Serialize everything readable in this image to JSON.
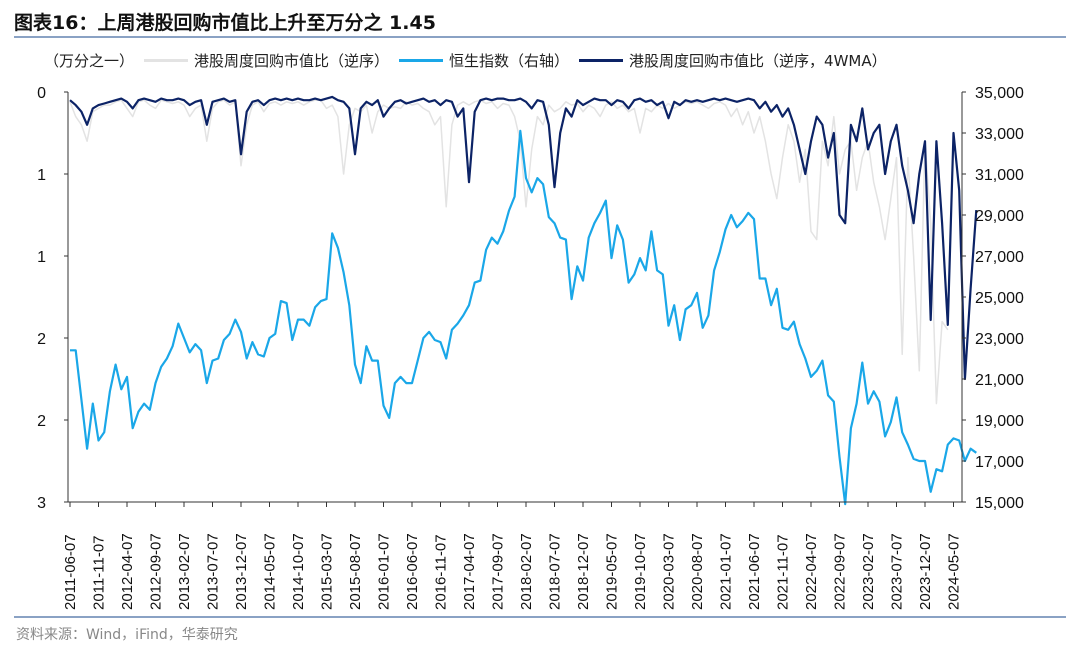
{
  "title": "图表16：上周港股回购市值比上升至万分之 1.45",
  "source": "资料来源：Wind，iFind，华泰研究",
  "chart_data": {
    "type": "line",
    "title": "图表16：上周港股回购市值比上升至万分之 1.45",
    "left_axis_unit": "（万分之一）",
    "left_axis": {
      "range": [
        0,
        2.5
      ],
      "reversed": true,
      "tick_labels": [
        "0",
        "1",
        "1",
        "2",
        "2",
        "3"
      ]
    },
    "right_axis": {
      "range": [
        15000,
        35000
      ],
      "tick_labels": [
        "35,000",
        "33,000",
        "31,000",
        "29,000",
        "27,000",
        "25,000",
        "23,000",
        "21,000",
        "19,000",
        "17,000",
        "15,000"
      ]
    },
    "x_tick_labels": [
      "2011-06-07",
      "2011-11-07",
      "2012-04-07",
      "2012-09-07",
      "2013-02-07",
      "2013-07-07",
      "2013-12-07",
      "2014-05-07",
      "2014-10-07",
      "2015-03-07",
      "2015-08-07",
      "2016-01-07",
      "2016-06-07",
      "2016-11-07",
      "2017-04-07",
      "2017-09-07",
      "2018-02-07",
      "2018-07-07",
      "2018-12-07",
      "2019-05-07",
      "2019-10-07",
      "2020-03-07",
      "2020-08-07",
      "2021-01-07",
      "2021-06-07",
      "2021-11-07",
      "2022-04-07",
      "2022-09-07",
      "2023-02-07",
      "2023-07-07",
      "2023-12-07",
      "2024-05-07"
    ],
    "x_start": "2011-06",
    "x_end": "2024-09",
    "x_step": "month",
    "grid": false,
    "legend_position": "top",
    "series": [
      {
        "name": "港股周度回购市值比（逆序）",
        "axis": "left",
        "color": "#e3e3e3",
        "values": [
          0.06,
          0.15,
          0.2,
          0.3,
          0.12,
          0.1,
          0.08,
          0.08,
          0.06,
          0.05,
          0.1,
          0.15,
          0.06,
          0.05,
          0.08,
          0.1,
          0.05,
          0.06,
          0.07,
          0.06,
          0.08,
          0.15,
          0.1,
          0.08,
          0.3,
          0.1,
          0.06,
          0.05,
          0.08,
          0.06,
          0.45,
          0.2,
          0.08,
          0.06,
          0.12,
          0.07,
          0.06,
          0.08,
          0.06,
          0.07,
          0.06,
          0.08,
          0.06,
          0.05,
          0.05,
          0.1,
          0.08,
          0.15,
          0.5,
          0.2,
          0.1,
          0.12,
          0.08,
          0.25,
          0.12,
          0.08,
          0.1,
          0.09,
          0.1,
          0.06,
          0.08,
          0.07,
          0.1,
          0.12,
          0.2,
          0.15,
          0.7,
          0.2,
          0.08,
          0.06,
          0.08,
          0.06,
          0.05,
          0.07,
          0.06,
          0.1,
          0.07,
          0.08,
          0.15,
          0.3,
          0.7,
          0.35,
          0.15,
          0.2,
          0.08,
          0.12,
          0.1,
          0.06,
          0.08,
          0.07,
          0.12,
          0.08,
          0.1,
          0.15,
          0.08,
          0.06,
          0.1,
          0.08,
          0.12,
          0.1,
          0.25,
          0.1,
          0.12,
          0.08,
          0.1,
          0.07,
          0.1,
          0.08,
          0.06,
          0.07,
          0.06,
          0.08,
          0.1,
          0.07,
          0.06,
          0.08,
          0.15,
          0.1,
          0.2,
          0.12,
          0.25,
          0.15,
          0.3,
          0.5,
          0.65,
          0.4,
          0.2,
          0.3,
          0.55,
          0.35,
          0.85,
          0.9,
          0.3,
          0.45,
          0.15,
          0.5,
          0.35,
          0.3,
          0.6,
          0.4,
          0.3,
          0.55,
          0.7,
          0.9,
          0.65,
          0.4,
          1.6,
          0.4,
          1.0,
          1.7,
          0.3,
          0.8,
          1.9,
          1.4,
          1.45
        ]
      },
      {
        "name": "恒生指数（右轴）",
        "axis": "right",
        "color": "#1aa7e8",
        "values": [
          22400,
          22400,
          20000,
          17600,
          19800,
          18000,
          18400,
          20400,
          21700,
          20500,
          21100,
          18600,
          19400,
          19800,
          19500,
          20800,
          21600,
          22000,
          22600,
          23700,
          23000,
          22300,
          22700,
          22400,
          20800,
          21900,
          22000,
          22900,
          23200,
          23900,
          23300,
          22000,
          22800,
          22200,
          22100,
          23000,
          23200,
          24800,
          24700,
          22900,
          23900,
          23900,
          23600,
          24500,
          24800,
          24900,
          28100,
          27400,
          26200,
          24600,
          21700,
          20800,
          22600,
          21900,
          21900,
          19700,
          19100,
          20800,
          21100,
          20800,
          20800,
          21900,
          23000,
          23300,
          22900,
          22800,
          22000,
          23400,
          23700,
          24100,
          24600,
          25700,
          25800,
          27300,
          27900,
          27600,
          28200,
          29200,
          29900,
          33100,
          30800,
          30100,
          30800,
          30500,
          28900,
          28600,
          27900,
          27800,
          24900,
          26500,
          25800,
          27900,
          28600,
          29100,
          29700,
          26900,
          28500,
          27800,
          25700,
          26100,
          26900,
          26300,
          28200,
          26300,
          26100,
          23600,
          24600,
          22900,
          24400,
          24600,
          25200,
          23500,
          24100,
          26300,
          27200,
          28300,
          29000,
          28400,
          28700,
          29100,
          28800,
          25900,
          25900,
          24600,
          25400,
          23500,
          23400,
          23800,
          22700,
          22000,
          21100,
          21400,
          21900,
          20200,
          19900,
          17200,
          14900,
          18600,
          19800,
          21800,
          19800,
          20400,
          19900,
          18200,
          18900,
          20100,
          18400,
          17800,
          17100,
          17000,
          17000,
          15500,
          16600,
          16500,
          17800,
          18100,
          18000,
          17000,
          17600,
          17400
        ]
      },
      {
        "name": "港股周度回购市值比（逆序，4WMA）",
        "axis": "left",
        "color": "#0c2366",
        "values": [
          0.05,
          0.08,
          0.12,
          0.2,
          0.1,
          0.08,
          0.07,
          0.06,
          0.05,
          0.04,
          0.06,
          0.1,
          0.05,
          0.04,
          0.05,
          0.06,
          0.04,
          0.05,
          0.05,
          0.04,
          0.05,
          0.08,
          0.06,
          0.05,
          0.2,
          0.06,
          0.05,
          0.04,
          0.06,
          0.05,
          0.38,
          0.12,
          0.06,
          0.05,
          0.08,
          0.05,
          0.04,
          0.05,
          0.04,
          0.05,
          0.04,
          0.05,
          0.05,
          0.04,
          0.05,
          0.04,
          0.03,
          0.05,
          0.06,
          0.1,
          0.38,
          0.1,
          0.06,
          0.08,
          0.05,
          0.15,
          0.1,
          0.06,
          0.05,
          0.07,
          0.06,
          0.05,
          0.04,
          0.06,
          0.05,
          0.08,
          0.05,
          0.06,
          0.15,
          0.1,
          0.55,
          0.12,
          0.05,
          0.04,
          0.05,
          0.04,
          0.04,
          0.05,
          0.05,
          0.04,
          0.06,
          0.1,
          0.05,
          0.06,
          0.2,
          0.58,
          0.25,
          0.1,
          0.15,
          0.05,
          0.08,
          0.06,
          0.04,
          0.05,
          0.05,
          0.08,
          0.05,
          0.06,
          0.1,
          0.05,
          0.04,
          0.06,
          0.05,
          0.08,
          0.06,
          0.16,
          0.06,
          0.08,
          0.05,
          0.06,
          0.05,
          0.06,
          0.05,
          0.04,
          0.05,
          0.04,
          0.05,
          0.06,
          0.05,
          0.04,
          0.05,
          0.1,
          0.06,
          0.12,
          0.08,
          0.15,
          0.1,
          0.2,
          0.35,
          0.5,
          0.3,
          0.15,
          0.2,
          0.4,
          0.25,
          0.75,
          0.8,
          0.2,
          0.3,
          0.1,
          0.35,
          0.25,
          0.2,
          0.5,
          0.3,
          0.2,
          0.45,
          0.6,
          0.8,
          0.5,
          0.3,
          1.39,
          0.3,
          0.8,
          1.42,
          0.25,
          0.6,
          1.75,
          1.2,
          0.72
        ]
      }
    ]
  }
}
